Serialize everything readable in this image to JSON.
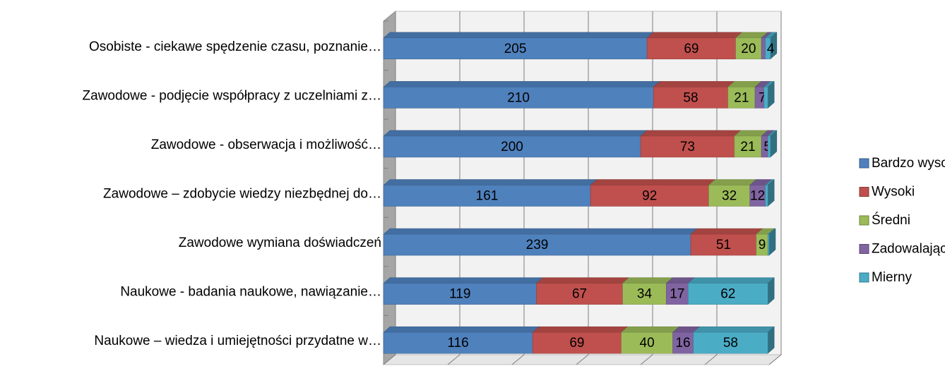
{
  "chart_data": {
    "type": "bar",
    "orientation": "horizontal",
    "stacked": true,
    "three_d": true,
    "categories": [
      "Osobiste - ciekawe spędzenie czasu, poznanie…",
      "Zawodowe - podjęcie współpracy z uczelniami z…",
      "Zawodowe - obserwacja i możliwość…",
      "Zawodowe – zdobycie wiedzy niezbędnej do…",
      "Zawodowe   wymiana doświadczeń",
      "Naukowe -  badania naukowe, nawiązanie…",
      "Naukowe – wiedza i umiejętności przydatne w…"
    ],
    "series": [
      {
        "name": "Bardzo wysoki",
        "color": "#4f81bd",
        "values": [
          205,
          210,
          200,
          161,
          239,
          119,
          116
        ]
      },
      {
        "name": "Wysoki",
        "color": "#c0504d",
        "values": [
          69,
          58,
          73,
          92,
          51,
          67,
          69
        ]
      },
      {
        "name": "Średni",
        "color": "#9bbb59",
        "values": [
          20,
          21,
          21,
          32,
          9,
          34,
          40
        ]
      },
      {
        "name": "Zadowalający",
        "color": "#8064a2",
        "values": [
          3,
          7,
          5,
          12,
          null,
          17,
          16
        ],
        "value_labels": [
          null,
          "7",
          "5",
          "12",
          null,
          "17",
          "16"
        ]
      },
      {
        "name": "Mierny",
        "color": "#4bacc6",
        "values": [
          4,
          3,
          2,
          2,
          1,
          62,
          58
        ],
        "value_labels": [
          "4",
          null,
          null,
          null,
          null,
          "62",
          "58"
        ]
      }
    ],
    "xlim": [
      0,
      300
    ],
    "xticks": [
      0,
      50,
      100,
      150,
      200,
      250,
      300
    ],
    "grid": true,
    "legend": "right"
  }
}
